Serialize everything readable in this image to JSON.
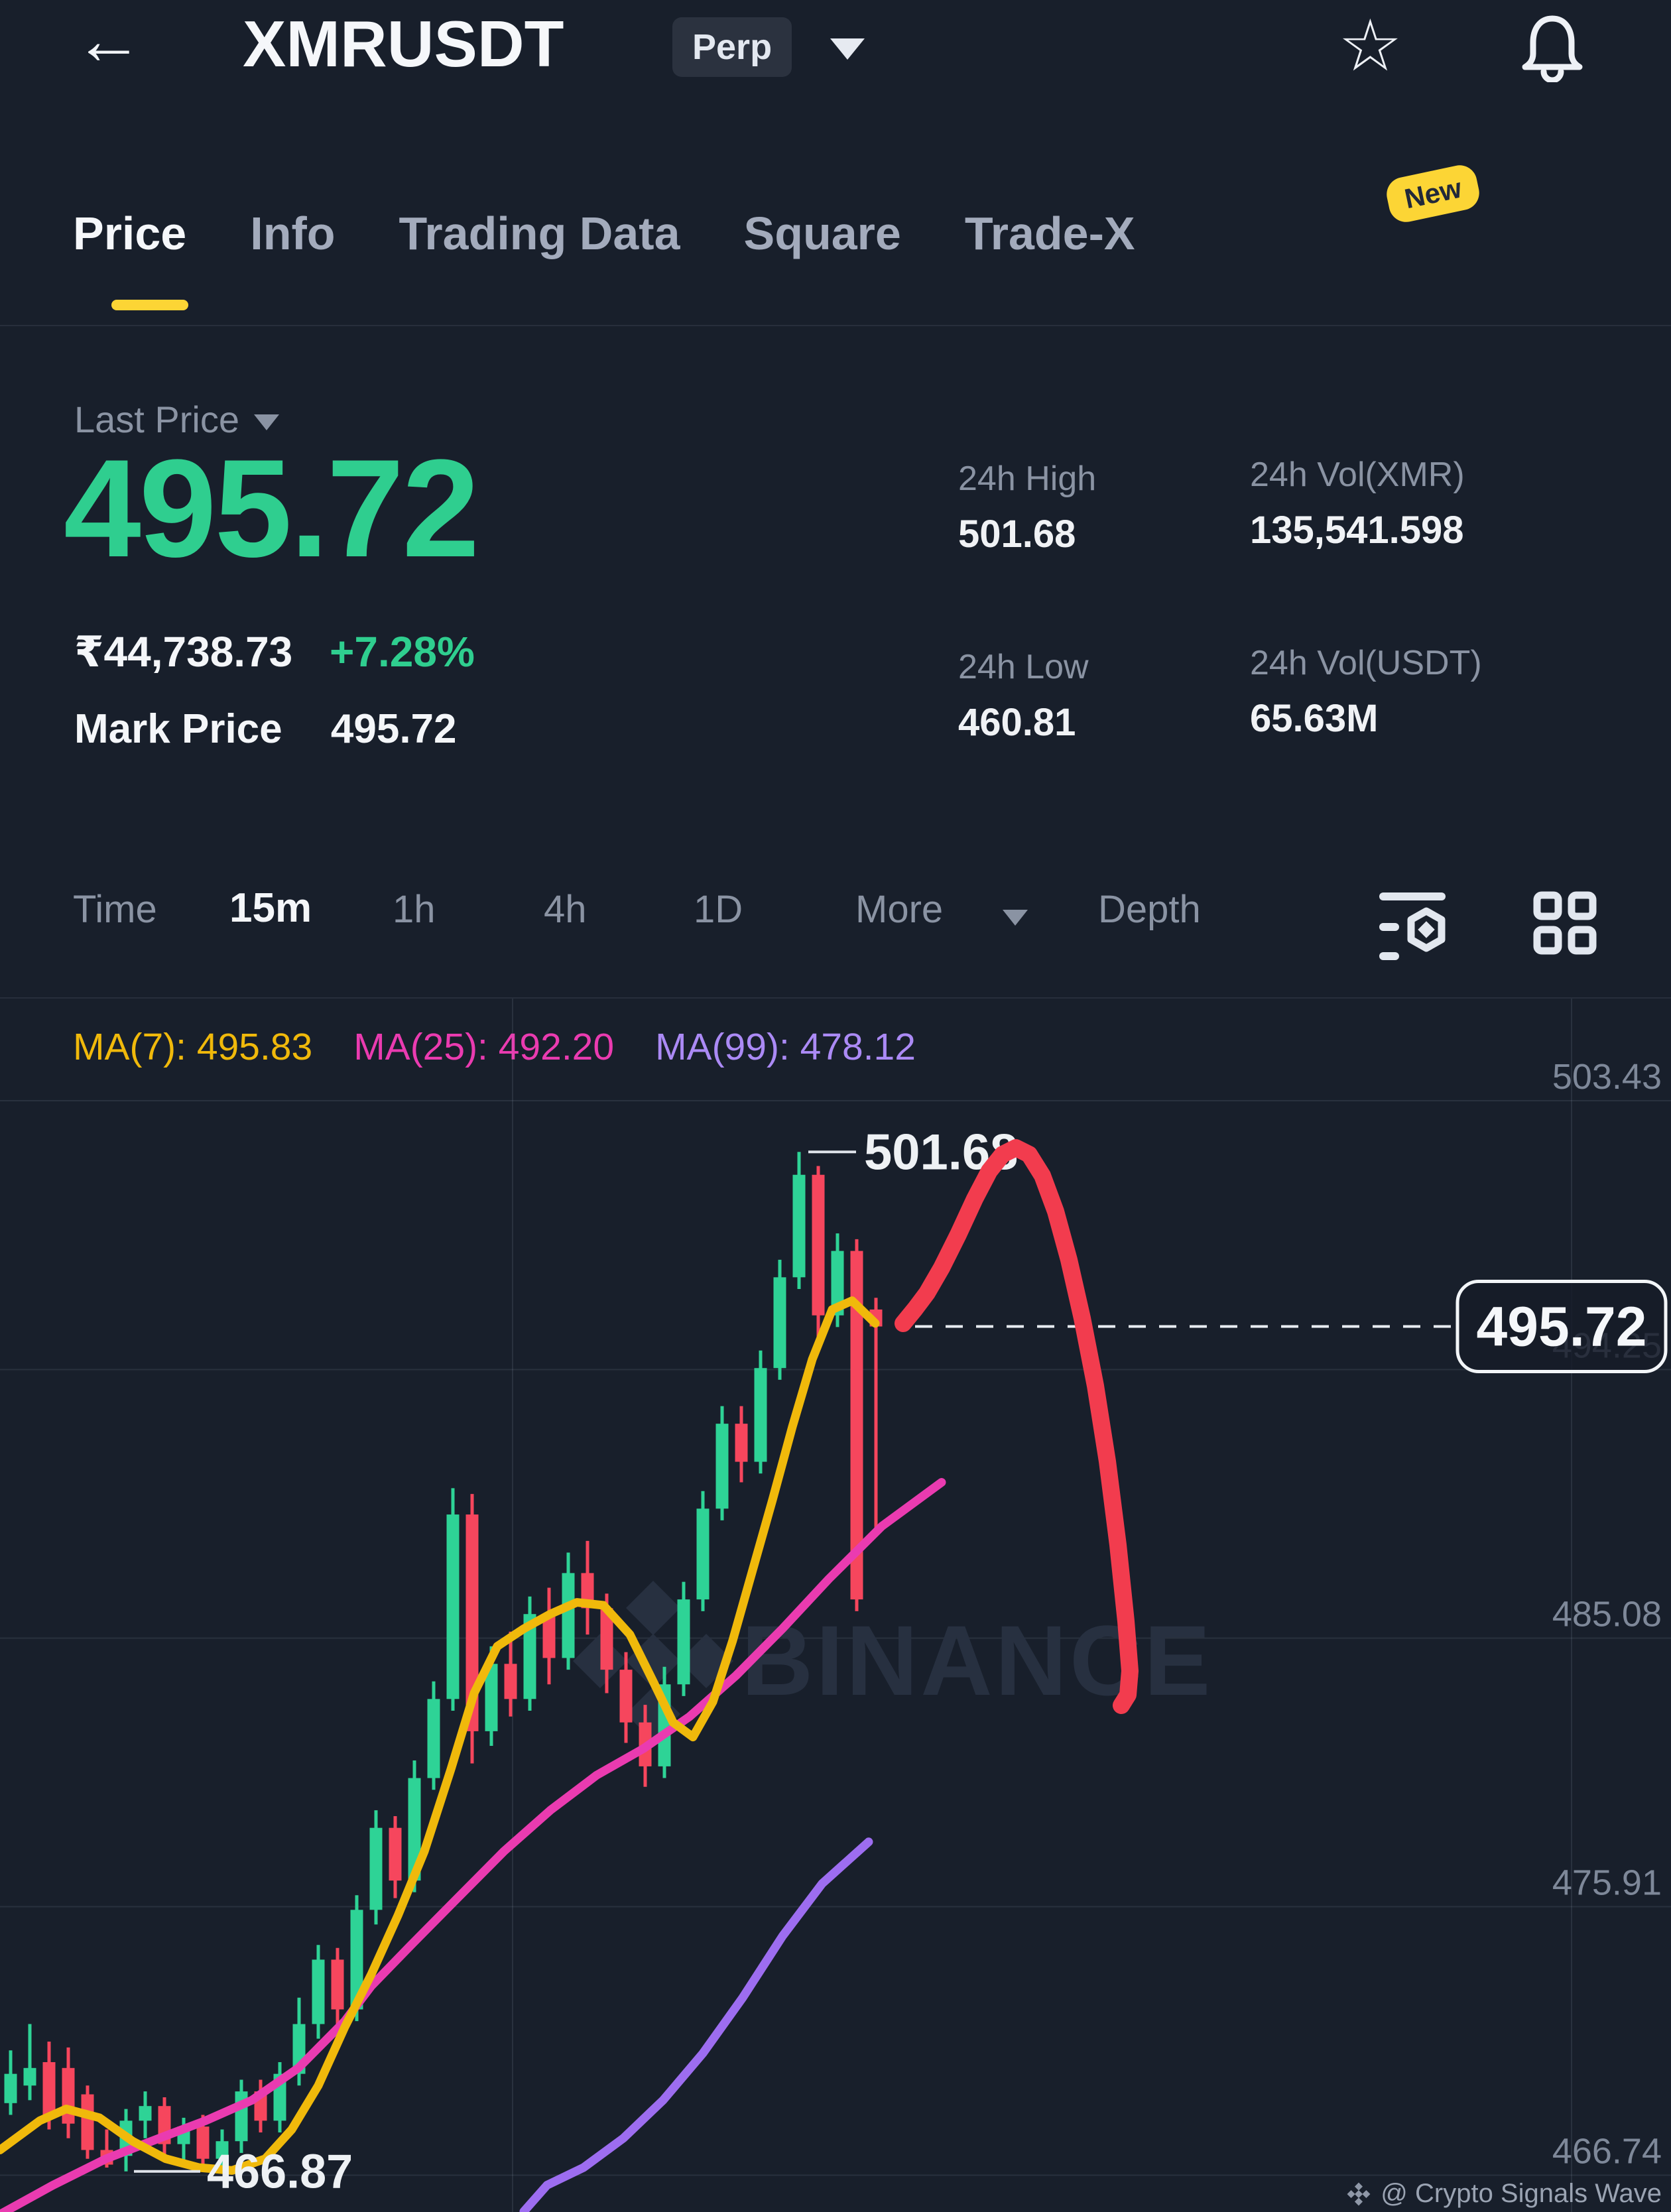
{
  "header": {
    "back_icon": "←",
    "title": "XMRUSDT",
    "contract_type": "Perp",
    "star_icon": "☆"
  },
  "tabs": {
    "items": [
      {
        "label": "Price",
        "active": true
      },
      {
        "label": "Info",
        "active": false
      },
      {
        "label": "Trading Data",
        "active": false
      },
      {
        "label": "Square",
        "active": false
      },
      {
        "label": "Trade-X",
        "active": false
      }
    ],
    "new_badge": "New"
  },
  "price_panel": {
    "last_price_label": "Last Price",
    "last_price": "495.72",
    "fiat_value": "₹44,738.73",
    "change_pct": "+7.28%",
    "mark_price_label": "Mark Price",
    "mark_price": "495.72"
  },
  "stats": {
    "high_label": "24h High",
    "high_value": "501.68",
    "vol_base_label": "24h Vol(XMR)",
    "vol_base_value": "135,541.598",
    "low_label": "24h Low",
    "low_value": "460.81",
    "vol_quote_label": "24h Vol(USDT)",
    "vol_quote_value": "65.63M"
  },
  "toolbar": {
    "time_label": "Time",
    "intervals": [
      "15m",
      "1h",
      "4h",
      "1D"
    ],
    "active_interval": "15m",
    "more_label": "More",
    "depth_label": "Depth"
  },
  "legend": {
    "ma7": "MA(7): 495.83",
    "ma25": "MA(25): 492.20",
    "ma99": "MA(99): 478.12"
  },
  "attribution": "@ Crypto Signals Wave",
  "chart_data": {
    "type": "candlestick",
    "symbol": "XMRUSDT",
    "interval": "15m",
    "title": "XMRUSDT Perp 15m candlestick chart with MA(7), MA(25), MA(99)",
    "moving_average_values": {
      "ma7": 495.83,
      "ma25": 492.2,
      "ma99": 478.12
    },
    "y_axis": {
      "labels": [
        "503.43",
        "494.25",
        "485.08",
        "475.91",
        "466.74"
      ],
      "prices": [
        503.43,
        494.25,
        485.08,
        475.91,
        466.74
      ],
      "hidden_behind_tag": "494.25"
    },
    "x_gridlines": [
      773,
      2370
    ],
    "ylim": [
      465.4,
      503.43
    ],
    "candles": [
      [
        469.2,
        471.0,
        468.8,
        470.2
      ],
      [
        469.8,
        471.9,
        469.3,
        470.4
      ],
      [
        470.6,
        471.3,
        468.3,
        468.8
      ],
      [
        470.4,
        471.1,
        468.0,
        468.5
      ],
      [
        469.5,
        469.8,
        467.3,
        467.6
      ],
      [
        467.6,
        468.3,
        467.0,
        467.1
      ],
      [
        467.4,
        469.0,
        466.87,
        468.6
      ],
      [
        468.6,
        469.6,
        468.0,
        469.1
      ],
      [
        469.1,
        469.4,
        467.4,
        467.8
      ],
      [
        467.8,
        468.7,
        467.2,
        468.4
      ],
      [
        468.4,
        468.8,
        466.9,
        467.3
      ],
      [
        467.3,
        468.3,
        466.9,
        467.9
      ],
      [
        467.9,
        470.0,
        467.5,
        469.6
      ],
      [
        469.6,
        470.0,
        468.2,
        468.6
      ],
      [
        468.6,
        470.6,
        468.2,
        470.2
      ],
      [
        470.2,
        472.8,
        469.8,
        471.9
      ],
      [
        471.9,
        474.6,
        471.4,
        474.1
      ],
      [
        474.1,
        474.5,
        471.9,
        472.4
      ],
      [
        472.4,
        476.3,
        472.0,
        475.8
      ],
      [
        475.8,
        479.2,
        475.3,
        478.6
      ],
      [
        478.6,
        479.0,
        476.2,
        476.8
      ],
      [
        476.8,
        480.9,
        476.4,
        480.3
      ],
      [
        480.3,
        483.6,
        479.9,
        483.0
      ],
      [
        483.0,
        490.2,
        482.6,
        489.3
      ],
      [
        489.3,
        490.0,
        480.8,
        481.9
      ],
      [
        481.9,
        484.8,
        481.4,
        484.2
      ],
      [
        484.2,
        485.3,
        482.4,
        483.0
      ],
      [
        483.0,
        486.5,
        482.6,
        485.9
      ],
      [
        485.9,
        486.8,
        483.5,
        484.4
      ],
      [
        484.4,
        488.0,
        484.0,
        487.3
      ],
      [
        487.3,
        488.4,
        485.2,
        486.1
      ],
      [
        486.1,
        486.6,
        483.2,
        484.0
      ],
      [
        484.0,
        484.6,
        481.5,
        482.2
      ],
      [
        482.2,
        482.8,
        480.0,
        480.7
      ],
      [
        480.7,
        484.1,
        480.3,
        483.5
      ],
      [
        483.5,
        487.0,
        483.1,
        486.4
      ],
      [
        486.4,
        490.1,
        486.0,
        489.5
      ],
      [
        489.5,
        493.0,
        489.1,
        492.4
      ],
      [
        492.4,
        493.0,
        490.4,
        491.1
      ],
      [
        491.1,
        494.9,
        490.7,
        494.3
      ],
      [
        494.3,
        498.0,
        493.9,
        497.4
      ],
      [
        497.4,
        501.68,
        497.0,
        500.9
      ],
      [
        500.9,
        501.2,
        495.3,
        496.1
      ],
      [
        496.1,
        498.9,
        495.7,
        498.3
      ],
      [
        498.3,
        498.7,
        486.0,
        486.4
      ],
      [
        496.3,
        496.7,
        488.6,
        495.72
      ]
    ],
    "series": {
      "ma7": [
        [
          0,
          467.6
        ],
        [
          60,
          468.6
        ],
        [
          100,
          469.0
        ],
        [
          150,
          468.7
        ],
        [
          200,
          467.9
        ],
        [
          250,
          467.3
        ],
        [
          300,
          467.0
        ],
        [
          350,
          466.9
        ],
        [
          400,
          467.3
        ],
        [
          440,
          468.3
        ],
        [
          480,
          469.8
        ],
        [
          520,
          471.8
        ],
        [
          560,
          473.6
        ],
        [
          600,
          475.6
        ],
        [
          640,
          477.8
        ],
        [
          680,
          480.6
        ],
        [
          715,
          483.2
        ],
        [
          750,
          484.8
        ],
        [
          790,
          485.4
        ],
        [
          830,
          485.9
        ],
        [
          870,
          486.3
        ],
        [
          910,
          486.2
        ],
        [
          950,
          485.2
        ],
        [
          985,
          483.6
        ],
        [
          1015,
          482.2
        ],
        [
          1045,
          481.7
        ],
        [
          1075,
          482.9
        ],
        [
          1105,
          485.0
        ],
        [
          1135,
          487.4
        ],
        [
          1165,
          489.8
        ],
        [
          1195,
          492.3
        ],
        [
          1225,
          494.6
        ],
        [
          1255,
          496.3
        ],
        [
          1285,
          496.6
        ],
        [
          1320,
          495.83
        ]
      ],
      "ma25": [
        [
          0,
          465.4
        ],
        [
          80,
          466.4
        ],
        [
          160,
          467.3
        ],
        [
          240,
          468.0
        ],
        [
          310,
          468.6
        ],
        [
          380,
          469.3
        ],
        [
          450,
          470.4
        ],
        [
          520,
          472.0
        ],
        [
          560,
          473.2
        ],
        [
          620,
          474.6
        ],
        [
          690,
          476.2
        ],
        [
          760,
          477.8
        ],
        [
          830,
          479.2
        ],
        [
          900,
          480.4
        ],
        [
          970,
          481.3
        ],
        [
          1040,
          482.4
        ],
        [
          1110,
          483.8
        ],
        [
          1180,
          485.4
        ],
        [
          1250,
          487.1
        ],
        [
          1330,
          488.9
        ],
        [
          1420,
          490.4
        ]
      ],
      "ma99": [
        [
          790,
          465.5
        ],
        [
          825,
          466.4
        ],
        [
          880,
          467.0
        ],
        [
          940,
          468.0
        ],
        [
          1000,
          469.3
        ],
        [
          1060,
          470.9
        ],
        [
          1120,
          472.8
        ],
        [
          1180,
          474.9
        ],
        [
          1240,
          476.7
        ],
        [
          1310,
          478.12
        ]
      ]
    },
    "annotations": {
      "high_tag": {
        "text": "501.68",
        "candle_index": 41,
        "price": 501.68
      },
      "low_tag": {
        "text": "466.87",
        "candle_index": 6,
        "price": 466.87
      },
      "last_price_tag": {
        "text": "495.72",
        "price": 495.72
      },
      "drawn_line": {
        "description": "hand-drawn signal line: pump to high then dump",
        "points": [
          [
            1362,
            1996
          ],
          [
            1380,
            1974
          ],
          [
            1398,
            1950
          ],
          [
            1420,
            1912
          ],
          [
            1445,
            1862
          ],
          [
            1470,
            1808
          ],
          [
            1492,
            1766
          ],
          [
            1512,
            1741
          ],
          [
            1532,
            1731
          ],
          [
            1552,
            1741
          ],
          [
            1572,
            1773
          ],
          [
            1592,
            1827
          ],
          [
            1612,
            1900
          ],
          [
            1632,
            1988
          ],
          [
            1652,
            2090
          ],
          [
            1670,
            2204
          ],
          [
            1686,
            2330
          ],
          [
            1698,
            2445
          ],
          [
            1704,
            2520
          ],
          [
            1701,
            2556
          ],
          [
            1691,
            2572
          ]
        ]
      }
    },
    "watermark": {
      "text": "BINANCE"
    },
    "colors": {
      "up": "#2ed396",
      "down": "#f6465d",
      "ma7": "#f0b90b",
      "ma25": "#ea3bb0",
      "ma99": "#9d6df0",
      "annotation": "#f23c4e",
      "grid": "rgba(151,163,184,0.14)",
      "axis_text": "#7e8899",
      "tag_text": "#eef1f4",
      "watermark": "#273040",
      "accent_yellow": "#fcd535",
      "price_green": "#2fce8f"
    },
    "legend_position": "top-left",
    "grid": true
  }
}
